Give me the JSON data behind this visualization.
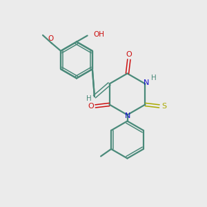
{
  "bg_color": "#ebebeb",
  "bond_color": "#4a8a7a",
  "n_color": "#1010cc",
  "o_color": "#cc1010",
  "s_color": "#aaaa00",
  "figsize": [
    3.0,
    3.0
  ],
  "dpi": 100,
  "xlim": [
    0,
    10
  ],
  "ylim": [
    0,
    10
  ]
}
